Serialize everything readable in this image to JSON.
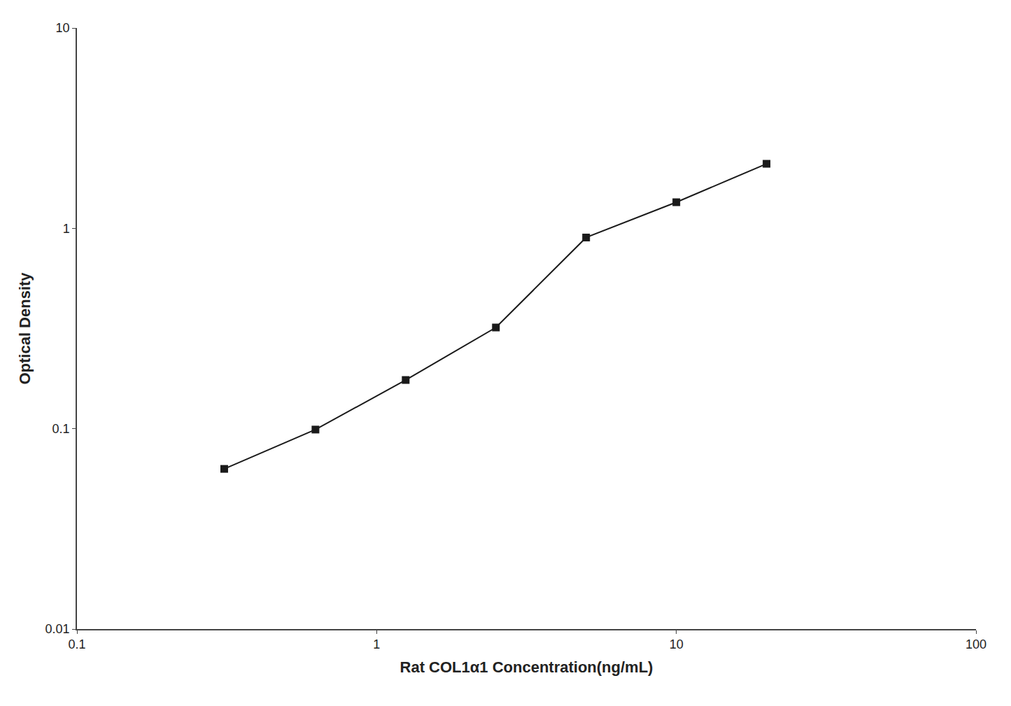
{
  "chart_data": {
    "type": "line",
    "x": [
      0.31,
      0.625,
      1.25,
      2.5,
      5.0,
      10.0,
      20.0
    ],
    "values": [
      0.063,
      0.099,
      0.175,
      0.32,
      0.9,
      1.35,
      2.1
    ],
    "xlabel": "Rat COL1α1 Concentration(ng/mL)",
    "ylabel": "Optical Density",
    "xlim": [
      0.1,
      100
    ],
    "ylim": [
      0.01,
      10
    ],
    "xticks": [
      0.1,
      1,
      10,
      100
    ],
    "yticks": [
      0.01,
      0.1,
      1,
      10
    ],
    "log": true,
    "grid": false,
    "color": "#1a1a1a",
    "marker": "square",
    "line_style": "solid"
  }
}
